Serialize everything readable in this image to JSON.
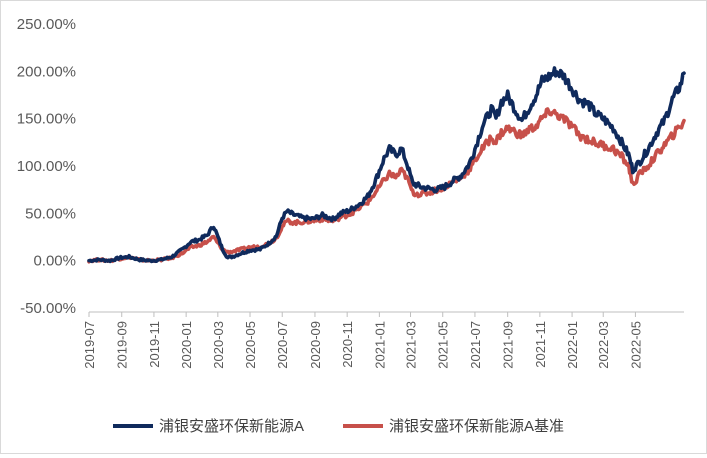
{
  "chart_data": {
    "type": "line",
    "title": "",
    "xlabel": "",
    "ylabel": "",
    "ylim": [
      -50,
      250
    ],
    "y_tick_labels": [
      "-50.00%",
      "0.00%",
      "50.00%",
      "100.00%",
      "150.00%",
      "200.00%",
      "250.00%"
    ],
    "y_ticks": [
      -50,
      0,
      50,
      100,
      150,
      200,
      250
    ],
    "x_tick_labels": [
      "2019-07",
      "2019-09",
      "2019-11",
      "2020-01",
      "2020-03",
      "2020-05",
      "2020-07",
      "2020-09",
      "2020-11",
      "2021-01",
      "2021-03",
      "2021-05",
      "2021-07",
      "2021-09",
      "2021-11",
      "2022-01",
      "2022-03",
      "2022-05"
    ],
    "x_range": [
      "2019-07",
      "2022-08"
    ],
    "grid": false,
    "legend_position": "bottom",
    "series": [
      {
        "name": "浦银安盛环保新能源A",
        "color": "#0f2a5c",
        "points": [
          [
            "2019-07-01",
            0
          ],
          [
            "2019-07-20",
            1
          ],
          [
            "2019-08-10",
            0
          ],
          [
            "2019-08-28",
            3
          ],
          [
            "2019-09-15",
            4
          ],
          [
            "2019-10-05",
            1
          ],
          [
            "2019-10-25",
            0
          ],
          [
            "2019-11-15",
            1
          ],
          [
            "2019-12-05",
            4
          ],
          [
            "2019-12-25",
            12
          ],
          [
            "2020-01-10",
            20
          ],
          [
            "2020-01-25",
            22
          ],
          [
            "2020-02-10",
            27
          ],
          [
            "2020-02-22",
            37
          ],
          [
            "2020-02-28",
            28
          ],
          [
            "2020-03-10",
            12
          ],
          [
            "2020-03-20",
            3
          ],
          [
            "2020-04-01",
            5
          ],
          [
            "2020-04-15",
            8
          ],
          [
            "2020-05-01",
            11
          ],
          [
            "2020-05-20",
            12
          ],
          [
            "2020-06-05",
            18
          ],
          [
            "2020-06-20",
            26
          ],
          [
            "2020-07-01",
            45
          ],
          [
            "2020-07-10",
            52
          ],
          [
            "2020-07-25",
            48
          ],
          [
            "2020-08-10",
            45
          ],
          [
            "2020-08-28",
            44
          ],
          [
            "2020-09-15",
            48
          ],
          [
            "2020-10-05",
            44
          ],
          [
            "2020-10-20",
            50
          ],
          [
            "2020-11-05",
            53
          ],
          [
            "2020-11-25",
            60
          ],
          [
            "2020-12-10",
            68
          ],
          [
            "2020-12-25",
            85
          ],
          [
            "2021-01-10",
            108
          ],
          [
            "2021-01-20",
            118
          ],
          [
            "2021-02-01",
            112
          ],
          [
            "2021-02-12",
            118
          ],
          [
            "2021-02-22",
            103
          ],
          [
            "2021-03-05",
            82
          ],
          [
            "2021-03-20",
            78
          ],
          [
            "2021-04-05",
            76
          ],
          [
            "2021-04-20",
            75
          ],
          [
            "2021-05-05",
            78
          ],
          [
            "2021-05-20",
            84
          ],
          [
            "2021-06-05",
            90
          ],
          [
            "2021-06-20",
            102
          ],
          [
            "2021-07-01",
            118
          ],
          [
            "2021-07-15",
            142
          ],
          [
            "2021-08-01",
            160
          ],
          [
            "2021-08-10",
            150
          ],
          [
            "2021-08-20",
            168
          ],
          [
            "2021-09-01",
            174
          ],
          [
            "2021-09-15",
            160
          ],
          [
            "2021-09-28",
            148
          ],
          [
            "2021-10-10",
            160
          ],
          [
            "2021-10-25",
            175
          ],
          [
            "2021-11-05",
            190
          ],
          [
            "2021-11-20",
            195
          ],
          [
            "2021-12-01",
            200
          ],
          [
            "2021-12-15",
            196
          ],
          [
            "2022-01-01",
            182
          ],
          [
            "2022-01-15",
            170
          ],
          [
            "2022-02-01",
            165
          ],
          [
            "2022-02-15",
            155
          ],
          [
            "2022-03-01",
            150
          ],
          [
            "2022-03-20",
            140
          ],
          [
            "2022-04-05",
            125
          ],
          [
            "2022-04-18",
            112
          ],
          [
            "2022-04-26",
            96
          ],
          [
            "2022-05-10",
            105
          ],
          [
            "2022-05-25",
            118
          ],
          [
            "2022-06-10",
            135
          ],
          [
            "2022-06-25",
            148
          ],
          [
            "2022-07-10",
            170
          ],
          [
            "2022-07-25",
            185
          ],
          [
            "2022-08-01",
            198
          ]
        ]
      },
      {
        "name": "浦银安盛环保新能源A基准",
        "color": "#c7504a",
        "points": [
          [
            "2019-07-01",
            0
          ],
          [
            "2019-07-20",
            1
          ],
          [
            "2019-08-10",
            0
          ],
          [
            "2019-08-28",
            2
          ],
          [
            "2019-09-15",
            4
          ],
          [
            "2019-10-05",
            1
          ],
          [
            "2019-10-25",
            0
          ],
          [
            "2019-11-15",
            1
          ],
          [
            "2019-12-05",
            3
          ],
          [
            "2019-12-25",
            8
          ],
          [
            "2020-01-10",
            14
          ],
          [
            "2020-01-25",
            16
          ],
          [
            "2020-02-10",
            20
          ],
          [
            "2020-02-22",
            25
          ],
          [
            "2020-02-28",
            20
          ],
          [
            "2020-03-10",
            12
          ],
          [
            "2020-03-20",
            9
          ],
          [
            "2020-04-01",
            10
          ],
          [
            "2020-04-15",
            12
          ],
          [
            "2020-05-01",
            14
          ],
          [
            "2020-05-20",
            15
          ],
          [
            "2020-06-05",
            18
          ],
          [
            "2020-06-20",
            24
          ],
          [
            "2020-07-01",
            36
          ],
          [
            "2020-07-10",
            42
          ],
          [
            "2020-07-25",
            40
          ],
          [
            "2020-08-10",
            41
          ],
          [
            "2020-08-28",
            42
          ],
          [
            "2020-09-15",
            44
          ],
          [
            "2020-10-05",
            42
          ],
          [
            "2020-10-20",
            46
          ],
          [
            "2020-11-05",
            49
          ],
          [
            "2020-11-25",
            56
          ],
          [
            "2020-12-10",
            62
          ],
          [
            "2020-12-25",
            72
          ],
          [
            "2021-01-10",
            85
          ],
          [
            "2021-01-20",
            92
          ],
          [
            "2021-02-01",
            88
          ],
          [
            "2021-02-12",
            95
          ],
          [
            "2021-02-22",
            88
          ],
          [
            "2021-03-05",
            72
          ],
          [
            "2021-03-20",
            70
          ],
          [
            "2021-04-05",
            72
          ],
          [
            "2021-04-20",
            75
          ],
          [
            "2021-05-05",
            78
          ],
          [
            "2021-05-20",
            83
          ],
          [
            "2021-06-05",
            88
          ],
          [
            "2021-06-20",
            96
          ],
          [
            "2021-07-01",
            106
          ],
          [
            "2021-07-15",
            118
          ],
          [
            "2021-08-01",
            130
          ],
          [
            "2021-08-10",
            126
          ],
          [
            "2021-08-20",
            135
          ],
          [
            "2021-09-01",
            140
          ],
          [
            "2021-09-15",
            136
          ],
          [
            "2021-09-28",
            132
          ],
          [
            "2021-10-10",
            138
          ],
          [
            "2021-10-25",
            142
          ],
          [
            "2021-11-05",
            150
          ],
          [
            "2021-11-20",
            158
          ],
          [
            "2021-12-01",
            155
          ],
          [
            "2021-12-15",
            150
          ],
          [
            "2022-01-01",
            142
          ],
          [
            "2022-01-15",
            132
          ],
          [
            "2022-02-01",
            128
          ],
          [
            "2022-02-15",
            124
          ],
          [
            "2022-03-01",
            122
          ],
          [
            "2022-03-20",
            118
          ],
          [
            "2022-04-05",
            110
          ],
          [
            "2022-04-18",
            100
          ],
          [
            "2022-04-26",
            80
          ],
          [
            "2022-05-10",
            92
          ],
          [
            "2022-05-25",
            100
          ],
          [
            "2022-06-10",
            112
          ],
          [
            "2022-06-25",
            122
          ],
          [
            "2022-07-10",
            132
          ],
          [
            "2022-07-25",
            142
          ],
          [
            "2022-08-01",
            148
          ]
        ]
      }
    ]
  }
}
